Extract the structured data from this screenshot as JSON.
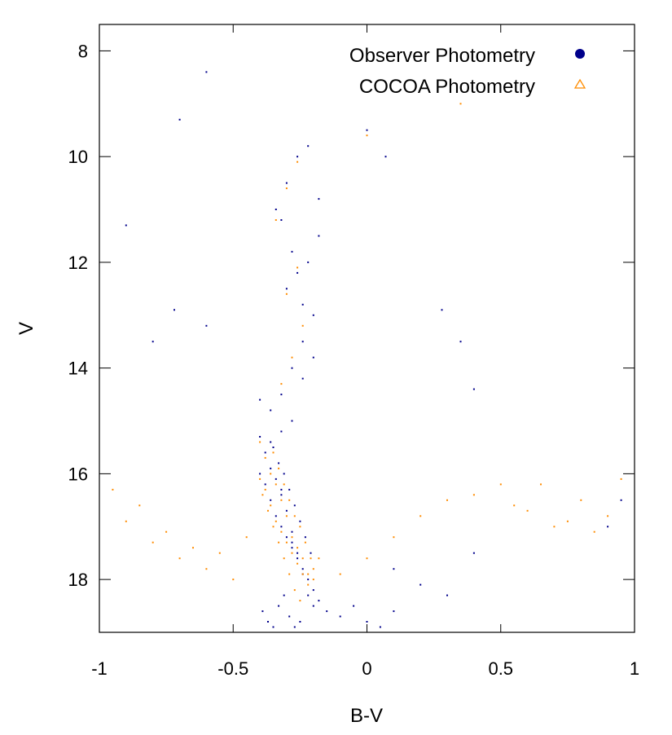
{
  "chart_data": {
    "type": "scatter",
    "title": "",
    "xlabel": "B-V",
    "ylabel": "V",
    "xlim": [
      -1,
      1
    ],
    "ylim": [
      19,
      7.5
    ],
    "y_inverted": true,
    "grid": false,
    "legend_position": "top-right",
    "x_ticks": [
      -1,
      -0.5,
      0,
      0.5,
      1
    ],
    "x_tick_labels": [
      "-1",
      "-0.5",
      "0",
      "0.5",
      "1"
    ],
    "y_ticks": [
      8,
      10,
      12,
      14,
      16,
      18
    ],
    "y_tick_labels": [
      "8",
      "10",
      "12",
      "14",
      "16",
      "18"
    ],
    "series": [
      {
        "name": "Observer Photometry",
        "marker": "filled-circle",
        "color": "#00008b",
        "x": [
          -0.4,
          -0.38,
          -0.36,
          -0.34,
          -0.32,
          -0.3,
          -0.28,
          -0.26,
          -0.24,
          -0.22,
          -0.2,
          -0.18,
          -0.35,
          -0.33,
          -0.31,
          -0.29,
          -0.27,
          -0.25,
          -0.23,
          -0.21,
          -0.39,
          -0.37,
          -0.35,
          -0.33,
          -0.31,
          -0.29,
          -0.27,
          -0.25,
          -0.4,
          -0.38,
          -0.36,
          -0.34,
          -0.32,
          -0.3,
          -0.28,
          -0.26,
          -0.24,
          -0.22,
          -0.2,
          -0.15,
          -0.1,
          -0.05,
          0.0,
          0.05,
          0.1,
          -0.32,
          -0.28,
          -0.24,
          -0.2,
          -0.3,
          -0.26,
          -0.22,
          -0.18,
          -0.34,
          -0.3,
          -0.26,
          -0.22,
          -0.18,
          -0.32,
          -0.28,
          -0.24,
          -0.2,
          -0.36,
          -0.32,
          -0.28,
          -0.24,
          -0.4,
          -0.36,
          -0.32,
          -0.28,
          0.1,
          0.2,
          0.3,
          0.4,
          -0.6,
          -0.7,
          -0.8,
          -0.9,
          0.9,
          0.95,
          -0.72,
          0.0,
          0.07,
          -0.6,
          0.28,
          0.4,
          0.35
        ],
        "y": [
          16.0,
          16.2,
          16.5,
          16.8,
          17.0,
          17.2,
          17.4,
          17.6,
          17.8,
          18.0,
          18.2,
          18.4,
          15.5,
          15.8,
          16.0,
          16.3,
          16.6,
          16.9,
          17.2,
          17.5,
          18.6,
          18.8,
          18.9,
          18.5,
          18.3,
          18.7,
          18.9,
          18.8,
          15.3,
          15.6,
          15.9,
          16.1,
          16.4,
          16.7,
          17.1,
          17.5,
          17.9,
          18.3,
          18.5,
          18.6,
          18.7,
          18.5,
          18.8,
          18.9,
          18.6,
          14.5,
          14.0,
          13.5,
          13.0,
          12.5,
          12.2,
          12.0,
          11.5,
          11.0,
          10.5,
          10.0,
          9.8,
          10.8,
          11.2,
          11.8,
          12.8,
          13.8,
          14.8,
          15.2,
          15.0,
          14.2,
          14.6,
          15.4,
          16.3,
          17.3,
          17.8,
          18.1,
          18.3,
          17.5,
          8.4,
          9.3,
          13.5,
          11.3,
          17.0,
          16.5,
          12.9,
          9.5,
          10.0,
          13.2,
          12.9,
          14.4,
          13.5
        ]
      },
      {
        "name": "COCOA Photometry",
        "marker": "open-triangle",
        "color": "#ff8c00",
        "x": [
          -0.4,
          -0.38,
          -0.36,
          -0.34,
          -0.32,
          -0.3,
          -0.28,
          -0.26,
          -0.24,
          -0.22,
          -0.2,
          -0.18,
          -0.35,
          -0.33,
          -0.31,
          -0.29,
          -0.27,
          -0.25,
          -0.23,
          -0.21,
          -0.39,
          -0.37,
          -0.35,
          -0.33,
          -0.31,
          -0.29,
          -0.27,
          -0.25,
          -0.4,
          -0.38,
          -0.36,
          -0.34,
          -0.32,
          -0.3,
          -0.28,
          -0.26,
          -0.24,
          -0.22,
          -0.2,
          -0.1,
          0.0,
          0.1,
          0.2,
          0.3,
          0.4,
          0.5,
          0.6,
          0.7,
          0.8,
          0.9,
          0.95,
          -0.9,
          -0.8,
          -0.7,
          -0.6,
          -0.5,
          -0.95,
          -0.85,
          -0.75,
          -0.65,
          -0.55,
          -0.45,
          0.55,
          0.65,
          0.75,
          0.85,
          -0.32,
          -0.28,
          -0.24,
          -0.3,
          -0.26,
          -0.34,
          -0.3,
          -0.26,
          0.0,
          0.35
        ],
        "y": [
          16.1,
          16.3,
          16.6,
          16.9,
          17.1,
          17.3,
          17.5,
          17.7,
          17.9,
          18.1,
          17.8,
          17.6,
          15.6,
          15.9,
          16.2,
          16.5,
          16.8,
          17.0,
          17.3,
          17.6,
          16.4,
          16.7,
          17.0,
          17.3,
          17.6,
          17.9,
          18.2,
          18.4,
          15.4,
          15.7,
          16.0,
          16.2,
          16.5,
          16.8,
          17.2,
          17.4,
          17.6,
          17.9,
          18.0,
          17.9,
          17.6,
          17.2,
          16.8,
          16.5,
          16.4,
          16.2,
          16.7,
          17.0,
          16.5,
          16.8,
          16.1,
          16.9,
          17.3,
          17.6,
          17.8,
          18.0,
          16.3,
          16.6,
          17.1,
          17.4,
          17.5,
          17.2,
          16.6,
          16.2,
          16.9,
          17.1,
          14.3,
          13.8,
          13.2,
          12.6,
          12.1,
          11.2,
          10.6,
          10.1,
          9.6,
          9.0
        ]
      }
    ]
  }
}
